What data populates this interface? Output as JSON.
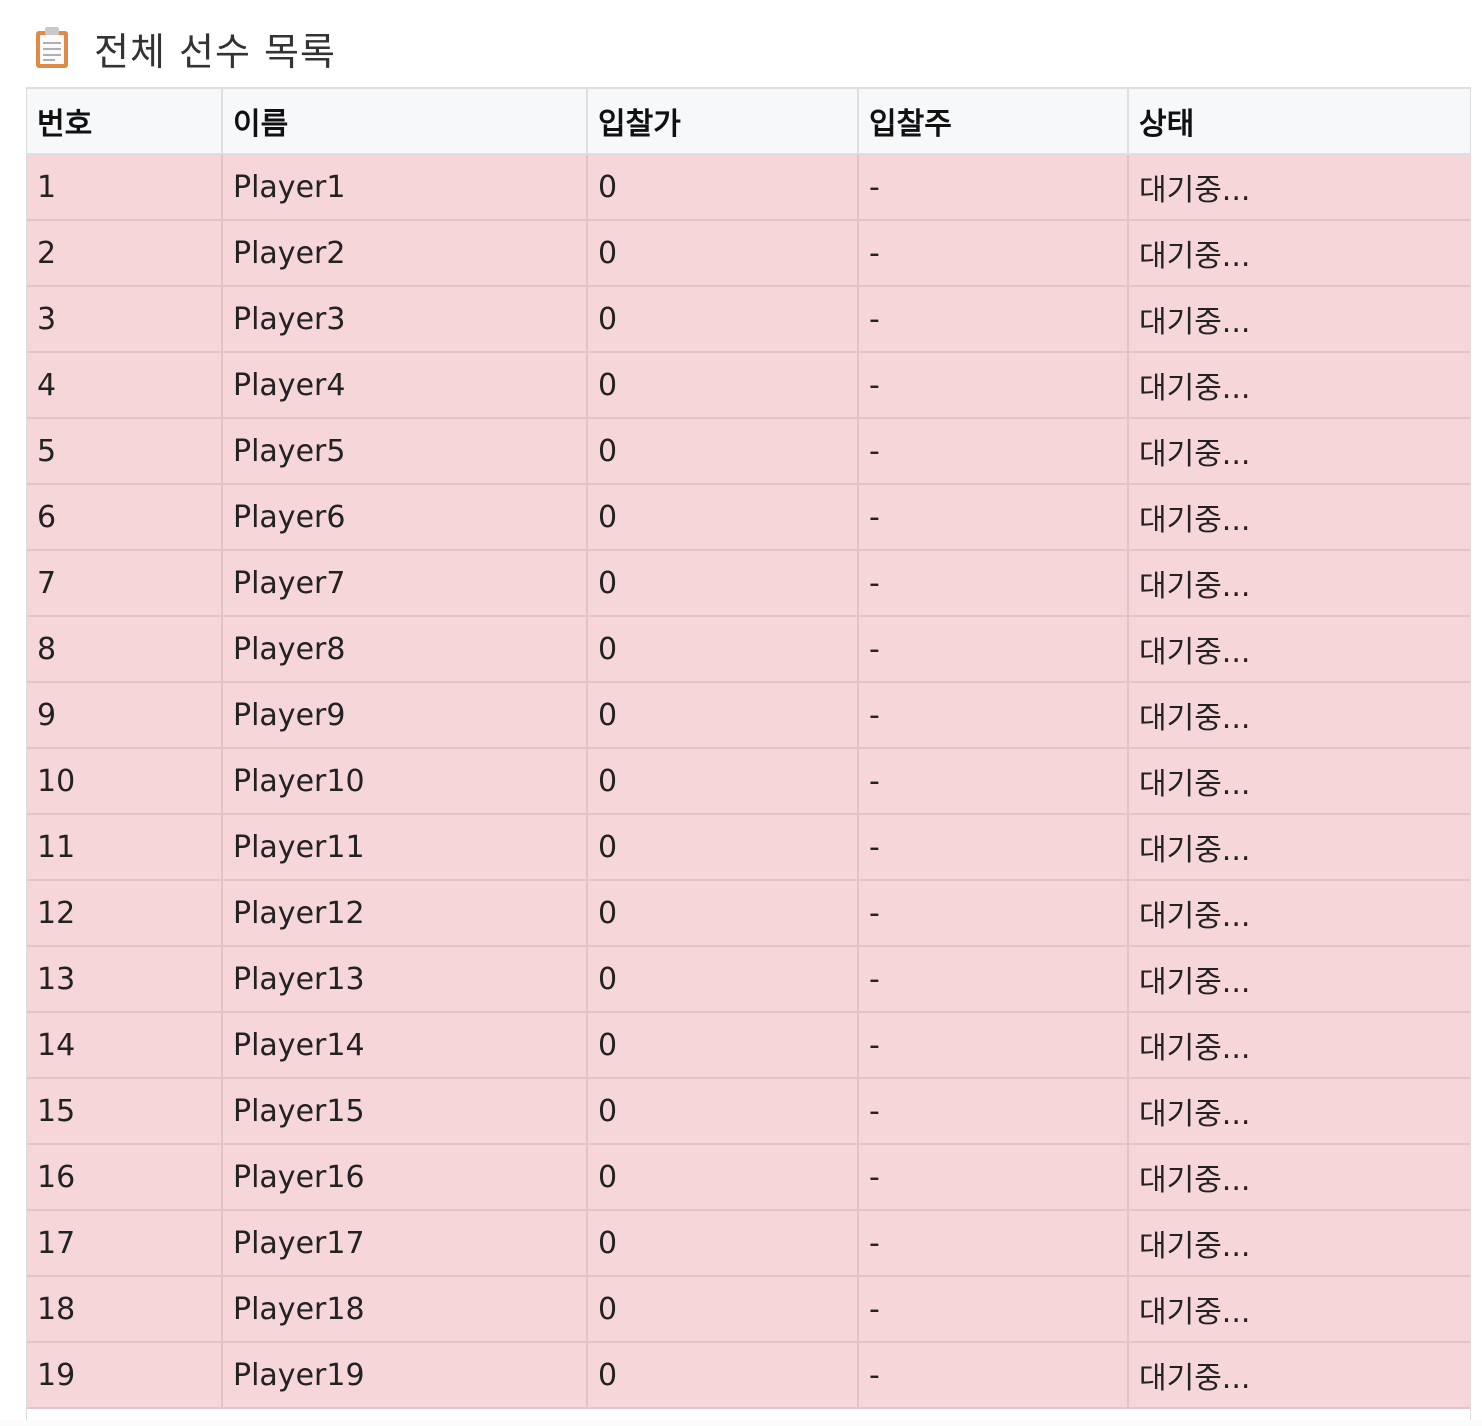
{
  "header": {
    "icon": "clipboard-icon",
    "title": "전체 선수 목록"
  },
  "table": {
    "columns": [
      "번호",
      "이름",
      "입찰가",
      "입찰주",
      "상태"
    ],
    "rows": [
      [
        "1",
        "Player1",
        "0",
        "-",
        "대기중..."
      ],
      [
        "2",
        "Player2",
        "0",
        "-",
        "대기중..."
      ],
      [
        "3",
        "Player3",
        "0",
        "-",
        "대기중..."
      ],
      [
        "4",
        "Player4",
        "0",
        "-",
        "대기중..."
      ],
      [
        "5",
        "Player5",
        "0",
        "-",
        "대기중..."
      ],
      [
        "6",
        "Player6",
        "0",
        "-",
        "대기중..."
      ],
      [
        "7",
        "Player7",
        "0",
        "-",
        "대기중..."
      ],
      [
        "8",
        "Player8",
        "0",
        "-",
        "대기중..."
      ],
      [
        "9",
        "Player9",
        "0",
        "-",
        "대기중..."
      ],
      [
        "10",
        "Player10",
        "0",
        "-",
        "대기중..."
      ],
      [
        "11",
        "Player11",
        "0",
        "-",
        "대기중..."
      ],
      [
        "12",
        "Player12",
        "0",
        "-",
        "대기중..."
      ],
      [
        "13",
        "Player13",
        "0",
        "-",
        "대기중..."
      ],
      [
        "14",
        "Player14",
        "0",
        "-",
        "대기중..."
      ],
      [
        "15",
        "Player15",
        "0",
        "-",
        "대기중..."
      ],
      [
        "16",
        "Player16",
        "0",
        "-",
        "대기중..."
      ],
      [
        "17",
        "Player17",
        "0",
        "-",
        "대기중..."
      ],
      [
        "18",
        "Player18",
        "0",
        "-",
        "대기중..."
      ],
      [
        "19",
        "Player19",
        "0",
        "-",
        "대기중..."
      ]
    ]
  },
  "colors": {
    "header_bg": "#f6f8fa",
    "row_bg": "#f6d6d9",
    "icon_accent": "#e08a4a"
  }
}
